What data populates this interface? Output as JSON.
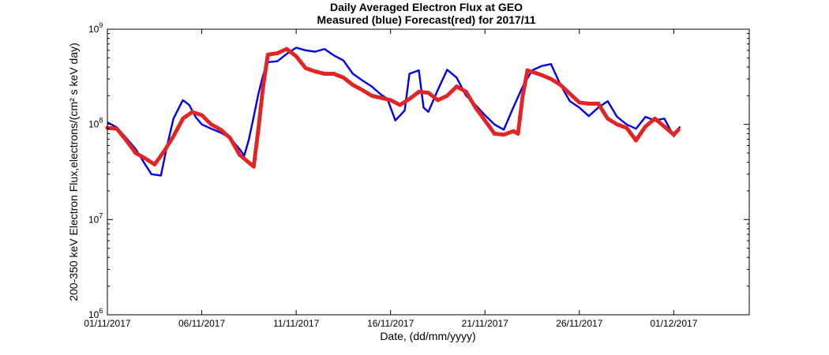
{
  "chart_data": {
    "type": "line",
    "title": "Daily Averaged Electron Flux at GEO",
    "subtitle": "Measured (blue) Forecast(red) for 2017/11",
    "xlabel": "Date, (dd/mm/yyyy)",
    "ylabel": "200-350 keV Electron Flux,electrons/(cm² s keV day)",
    "y_scale": "log",
    "ylim": [
      1000000,
      1000000000
    ],
    "xlim": [
      "01/11/2017",
      "05/12/2017"
    ],
    "x_ticks": [
      {
        "date": "01/11/2017",
        "label": "01/11/2017"
      },
      {
        "date": "06/11/2017",
        "label": "06/11/2017"
      },
      {
        "date": "11/11/2017",
        "label": "11/11/2017"
      },
      {
        "date": "16/11/2017",
        "label": "16/11/2017"
      },
      {
        "date": "21/11/2017",
        "label": "21/11/2017"
      },
      {
        "date": "26/11/2017",
        "label": "26/11/2017"
      },
      {
        "date": "01/12/2017",
        "label": "01/12/2017"
      }
    ],
    "y_ticks": [
      {
        "value": 1000000,
        "base": "10",
        "exp": "6"
      },
      {
        "value": 10000000,
        "base": "10",
        "exp": "7"
      },
      {
        "value": 100000000,
        "base": "10",
        "exp": "8"
      },
      {
        "value": 1000000000,
        "base": "10",
        "exp": "9"
      }
    ],
    "grid": false,
    "series": [
      {
        "color": "#0000ee",
        "style": "line",
        "points": [
          [
            "01/11/2017 00:00",
            105000000
          ],
          [
            "01/11/2017 12:00",
            93000000
          ],
          [
            "02/11/2017 00:00",
            72000000
          ],
          [
            "02/11/2017 12:00",
            55000000
          ],
          [
            "03/11/2017 00:00",
            38000000
          ],
          [
            "03/11/2017 08:00",
            30000000
          ],
          [
            "03/11/2017 20:00",
            29000000
          ],
          [
            "04/11/2017 04:00",
            60000000
          ],
          [
            "04/11/2017 12:00",
            115000000
          ],
          [
            "05/11/2017 00:00",
            180000000
          ],
          [
            "05/11/2017 08:00",
            160000000
          ],
          [
            "05/11/2017 16:00",
            120000000
          ],
          [
            "06/11/2017 00:00",
            100000000
          ],
          [
            "06/11/2017 12:00",
            90000000
          ],
          [
            "07/11/2017 00:00",
            82000000
          ],
          [
            "07/11/2017 12:00",
            72000000
          ],
          [
            "08/11/2017 00:00",
            55000000
          ],
          [
            "08/11/2017 06:00",
            47000000
          ],
          [
            "08/11/2017 12:00",
            70000000
          ],
          [
            "08/11/2017 18:00",
            120000000
          ],
          [
            "09/11/2017 00:00",
            210000000
          ],
          [
            "09/11/2017 06:00",
            330000000
          ],
          [
            "09/11/2017 12:00",
            450000000
          ],
          [
            "10/11/2017 00:00",
            460000000
          ],
          [
            "10/11/2017 12:00",
            550000000
          ],
          [
            "11/11/2017 00:00",
            640000000
          ],
          [
            "11/11/2017 12:00",
            600000000
          ],
          [
            "12/11/2017 00:00",
            580000000
          ],
          [
            "12/11/2017 12:00",
            620000000
          ],
          [
            "13/11/2017 00:00",
            530000000
          ],
          [
            "13/11/2017 12:00",
            470000000
          ],
          [
            "14/11/2017 00:00",
            340000000
          ],
          [
            "14/11/2017 12:00",
            290000000
          ],
          [
            "15/11/2017 00:00",
            250000000
          ],
          [
            "15/11/2017 12:00",
            205000000
          ],
          [
            "15/11/2017 20:00",
            185000000
          ],
          [
            "16/11/2017 06:00",
            110000000
          ],
          [
            "16/11/2017 18:00",
            140000000
          ],
          [
            "17/11/2017 00:00",
            340000000
          ],
          [
            "17/11/2017 12:00",
            370000000
          ],
          [
            "17/11/2017 18:00",
            150000000
          ],
          [
            "18/11/2017 00:00",
            135000000
          ],
          [
            "18/11/2017 12:00",
            230000000
          ],
          [
            "19/11/2017 00:00",
            375000000
          ],
          [
            "19/11/2017 12:00",
            310000000
          ],
          [
            "20/11/2017 00:00",
            200000000
          ],
          [
            "20/11/2017 12:00",
            160000000
          ],
          [
            "21/11/2017 00:00",
            125000000
          ],
          [
            "21/11/2017 12:00",
            100000000
          ],
          [
            "22/11/2017 00:00",
            88000000
          ],
          [
            "22/11/2017 12:00",
            150000000
          ],
          [
            "23/11/2017 00:00",
            250000000
          ],
          [
            "23/11/2017 12:00",
            370000000
          ],
          [
            "24/11/2017 00:00",
            410000000
          ],
          [
            "24/11/2017 12:00",
            430000000
          ],
          [
            "25/11/2017 00:00",
            260000000
          ],
          [
            "25/11/2017 12:00",
            175000000
          ],
          [
            "26/11/2017 00:00",
            150000000
          ],
          [
            "26/11/2017 12:00",
            122000000
          ],
          [
            "27/11/2017 00:00",
            150000000
          ],
          [
            "27/11/2017 12:00",
            175000000
          ],
          [
            "28/11/2017 00:00",
            120000000
          ],
          [
            "28/11/2017 12:00",
            100000000
          ],
          [
            "29/11/2017 00:00",
            90000000
          ],
          [
            "29/11/2017 12:00",
            120000000
          ],
          [
            "30/11/2017 00:00",
            110000000
          ],
          [
            "30/11/2017 12:00",
            115000000
          ],
          [
            "01/12/2017 00:00",
            75000000
          ],
          [
            "01/12/2017 08:00",
            95000000
          ]
        ]
      },
      {
        "color": "#e32424",
        "style": "markers",
        "points": [
          [
            "01/11/2017 00:00",
            92000000
          ],
          [
            "01/11/2017 12:00",
            90000000
          ],
          [
            "02/11/2017 00:00",
            68000000
          ],
          [
            "02/11/2017 12:00",
            50000000
          ],
          [
            "03/11/2017 00:00",
            44000000
          ],
          [
            "03/11/2017 12:00",
            38000000
          ],
          [
            "04/11/2017 00:00",
            52000000
          ],
          [
            "04/11/2017 12:00",
            75000000
          ],
          [
            "05/11/2017 00:00",
            115000000
          ],
          [
            "05/11/2017 12:00",
            135000000
          ],
          [
            "06/11/2017 00:00",
            125000000
          ],
          [
            "06/11/2017 12:00",
            100000000
          ],
          [
            "07/11/2017 00:00",
            88000000
          ],
          [
            "07/11/2017 12:00",
            72000000
          ],
          [
            "08/11/2017 00:00",
            48000000
          ],
          [
            "08/11/2017 18:00",
            36000000
          ],
          [
            "09/11/2017 00:00",
            90000000
          ],
          [
            "09/11/2017 06:00",
            250000000
          ],
          [
            "09/11/2017 12:00",
            540000000
          ],
          [
            "10/11/2017 00:00",
            560000000
          ],
          [
            "10/11/2017 12:00",
            620000000
          ],
          [
            "11/11/2017 00:00",
            520000000
          ],
          [
            "11/11/2017 12:00",
            390000000
          ],
          [
            "12/11/2017 00:00",
            360000000
          ],
          [
            "12/11/2017 12:00",
            340000000
          ],
          [
            "13/11/2017 00:00",
            340000000
          ],
          [
            "13/11/2017 12:00",
            310000000
          ],
          [
            "14/11/2017 00:00",
            260000000
          ],
          [
            "14/11/2017 12:00",
            230000000
          ],
          [
            "15/11/2017 00:00",
            200000000
          ],
          [
            "15/11/2017 12:00",
            190000000
          ],
          [
            "16/11/2017 00:00",
            180000000
          ],
          [
            "16/11/2017 12:00",
            160000000
          ],
          [
            "17/11/2017 00:00",
            185000000
          ],
          [
            "17/11/2017 12:00",
            220000000
          ],
          [
            "18/11/2017 00:00",
            215000000
          ],
          [
            "18/11/2017 12:00",
            180000000
          ],
          [
            "19/11/2017 00:00",
            200000000
          ],
          [
            "19/11/2017 12:00",
            250000000
          ],
          [
            "20/11/2017 00:00",
            220000000
          ],
          [
            "20/11/2017 12:00",
            150000000
          ],
          [
            "21/11/2017 00:00",
            110000000
          ],
          [
            "21/11/2017 12:00",
            80000000
          ],
          [
            "22/11/2017 00:00",
            78000000
          ],
          [
            "22/11/2017 12:00",
            85000000
          ],
          [
            "22/11/2017 18:00",
            80000000
          ],
          [
            "23/11/2017 00:00",
            200000000
          ],
          [
            "23/11/2017 06:00",
            370000000
          ],
          [
            "24/11/2017 00:00",
            330000000
          ],
          [
            "24/11/2017 12:00",
            300000000
          ],
          [
            "25/11/2017 00:00",
            260000000
          ],
          [
            "25/11/2017 12:00",
            210000000
          ],
          [
            "26/11/2017 00:00",
            170000000
          ],
          [
            "26/11/2017 12:00",
            165000000
          ],
          [
            "27/11/2017 00:00",
            165000000
          ],
          [
            "27/11/2017 12:00",
            115000000
          ],
          [
            "28/11/2017 00:00",
            100000000
          ],
          [
            "28/11/2017 12:00",
            92000000
          ],
          [
            "29/11/2017 00:00",
            68000000
          ],
          [
            "29/11/2017 12:00",
            95000000
          ],
          [
            "30/11/2017 00:00",
            115000000
          ],
          [
            "30/11/2017 12:00",
            95000000
          ],
          [
            "01/12/2017 00:00",
            78000000
          ],
          [
            "01/12/2017 06:00",
            88000000
          ]
        ]
      }
    ]
  }
}
